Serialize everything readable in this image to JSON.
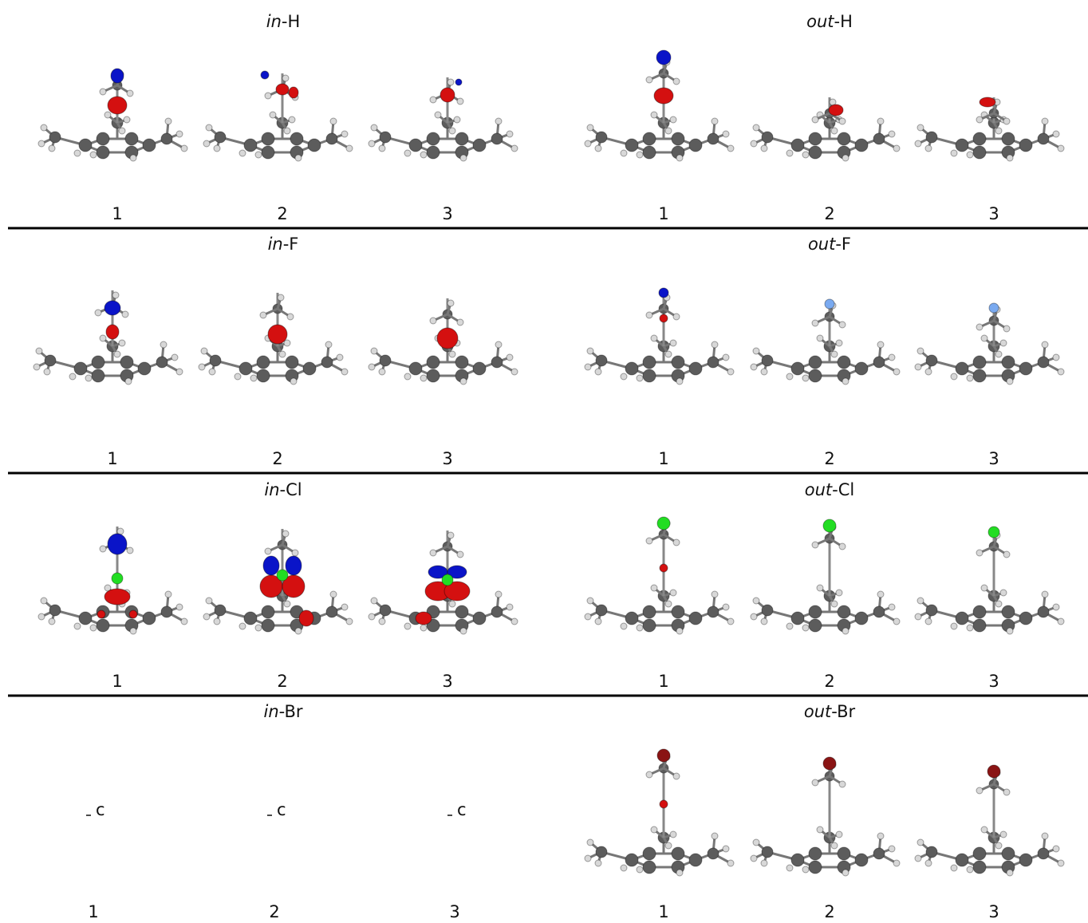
{
  "rows": [
    {
      "left": {
        "title_italic": "in",
        "title_rest": "-H",
        "labels": [
          "1",
          "2",
          "3"
        ]
      },
      "right": {
        "title_italic": "out",
        "title_rest": "-H",
        "labels": [
          "1",
          "2",
          "3"
        ]
      }
    },
    {
      "left": {
        "title_italic": "in",
        "title_rest": "-F",
        "labels": [
          "1",
          "2",
          "3"
        ]
      },
      "right": {
        "title_italic": "out",
        "title_rest": "-F",
        "labels": [
          "1",
          "2",
          "3"
        ]
      }
    },
    {
      "left": {
        "title_italic": "in",
        "title_rest": "-Cl",
        "labels": [
          "1",
          "2",
          "3"
        ]
      },
      "right": {
        "title_italic": "out",
        "title_rest": "-Cl",
        "labels": [
          "1",
          "2",
          "3"
        ]
      }
    },
    {
      "left": {
        "title_italic": "in",
        "title_rest": "-Br",
        "labels": [
          "1",
          "2",
          "3"
        ],
        "notes": [
          "c",
          "c",
          "c"
        ]
      },
      "right": {
        "title_italic": "out",
        "title_rest": "-Br",
        "labels": [
          "1",
          "2",
          "3"
        ]
      }
    }
  ]
}
